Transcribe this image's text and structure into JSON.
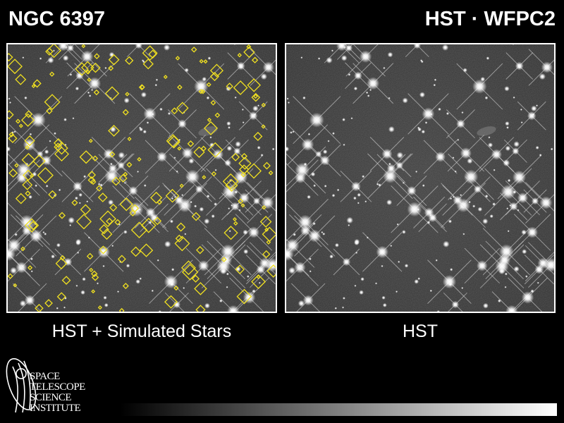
{
  "header": {
    "title": "NGC 6397",
    "instrument": "HST · WFPC2"
  },
  "panels": [
    {
      "caption": "HST + Simulated Stars"
    },
    {
      "caption": "HST"
    }
  ],
  "logo": {
    "lines": [
      "SPACE",
      "TELESCOPE",
      "SCIENCE",
      "INSTITUTE"
    ]
  }
}
